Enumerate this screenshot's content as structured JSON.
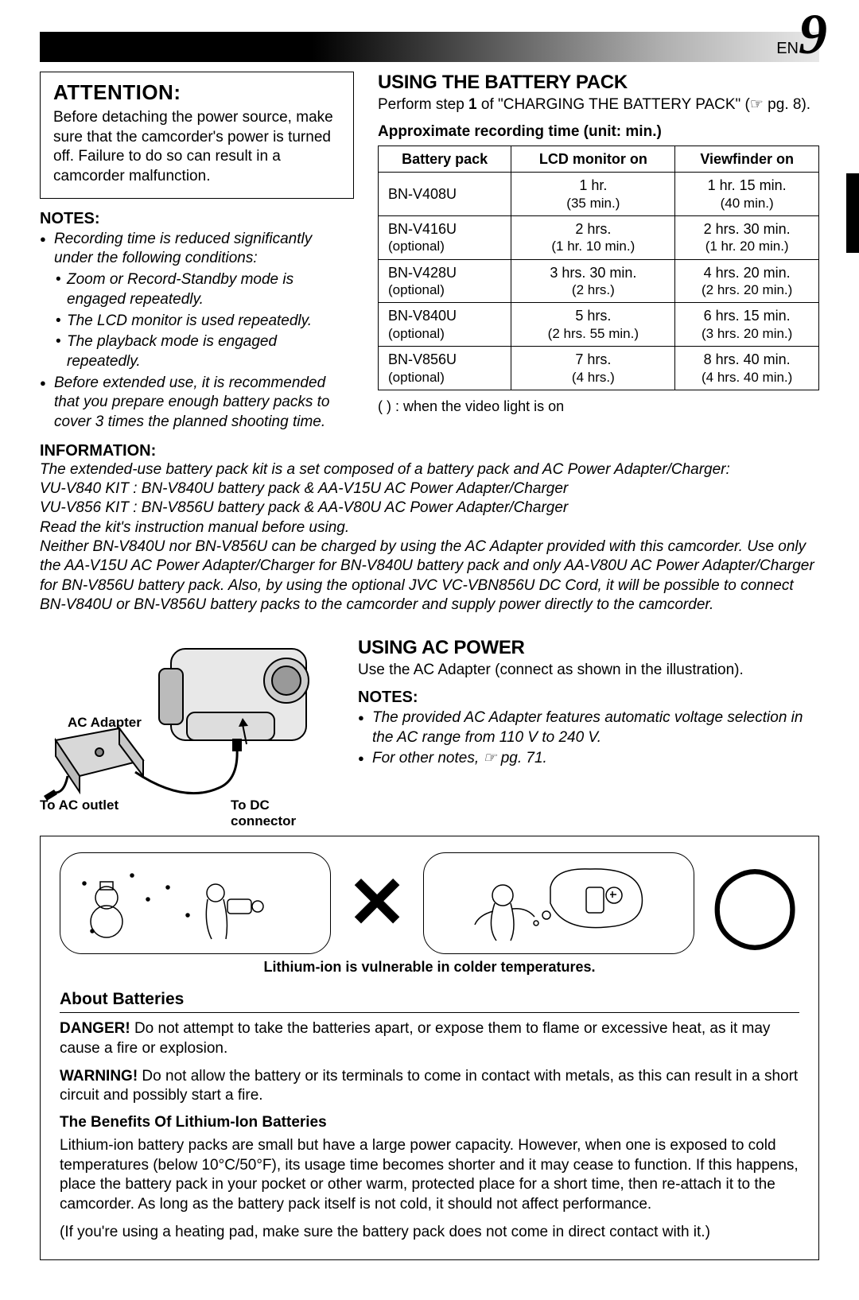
{
  "header": {
    "lang_prefix": "EN",
    "page_number": "9"
  },
  "attention": {
    "title": "ATTENTION:",
    "body": "Before detaching the power source, make sure that the camcorder's power is turned off. Failure to do so can result in a camcorder malfunction."
  },
  "notes_left": {
    "title": "NOTES:",
    "items": [
      "Recording time is reduced significantly under the following conditions:",
      "Before extended use, it is recommended that you prepare enough battery packs to cover 3 times the planned shooting time."
    ],
    "subitems": [
      "Zoom or Record-Standby mode is engaged repeatedly.",
      "The LCD monitor is used repeatedly.",
      "The playback mode is engaged repeatedly."
    ]
  },
  "battery_section": {
    "title": "USING THE BATTERY PACK",
    "subtitle_pre": "Perform step ",
    "subtitle_step": "1",
    "subtitle_post": " of \"CHARGING THE BATTERY PACK\" (☞ pg. 8).",
    "approx_title": "Approximate recording time (unit: min.)",
    "table": {
      "headers": [
        "Battery pack",
        "LCD monitor on",
        "Viewfinder on"
      ],
      "rows": [
        {
          "model": "BN-V408U",
          "opt": "",
          "lcd": "1 hr.",
          "lcd_sub": "(35 min.)",
          "vf": "1 hr. 15 min.",
          "vf_sub": "(40 min.)"
        },
        {
          "model": "BN-V416U",
          "opt": "(optional)",
          "lcd": "2 hrs.",
          "lcd_sub": "(1 hr. 10 min.)",
          "vf": "2 hrs. 30 min.",
          "vf_sub": "(1 hr. 20 min.)"
        },
        {
          "model": "BN-V428U",
          "opt": "(optional)",
          "lcd": "3 hrs. 30 min.",
          "lcd_sub": "(2 hrs.)",
          "vf": "4 hrs. 20 min.",
          "vf_sub": "(2 hrs. 20 min.)"
        },
        {
          "model": "BN-V840U",
          "opt": "(optional)",
          "lcd": "5 hrs.",
          "lcd_sub": "(2 hrs. 55 min.)",
          "vf": "6 hrs. 15 min.",
          "vf_sub": "(3 hrs. 20 min.)"
        },
        {
          "model": "BN-V856U",
          "opt": "(optional)",
          "lcd": "7 hrs.",
          "lcd_sub": "(4 hrs.)",
          "vf": "8 hrs. 40 min.",
          "vf_sub": "(4 hrs. 40 min.)"
        }
      ]
    },
    "caption": "(   ) : when the video light is on"
  },
  "information": {
    "title": "INFORMATION:",
    "body": "The extended-use battery pack kit is a set composed of a battery pack and AC Power Adapter/Charger:\nVU-V840 KIT : BN-V840U battery pack & AA-V15U AC Power Adapter/Charger\nVU-V856 KIT : BN-V856U battery pack & AA-V80U AC Power Adapter/Charger\nRead the kit's instruction manual before using.\nNeither BN-V840U nor BN-V856U can be charged by using the AC Adapter provided with this camcorder. Use only the AA-V15U AC Power Adapter/Charger for BN-V840U battery pack and only AA-V80U AC Power Adapter/Charger for BN-V856U battery pack. Also, by using the optional JVC VC-VBN856U DC Cord, it will be possible to connect BN-V840U or BN-V856U battery packs to the camcorder and supply power directly to the camcorder."
  },
  "ac_power": {
    "title": "USING AC POWER",
    "sub": "Use the AC Adapter (connect as shown in the illustration).",
    "notes_title": "NOTES:",
    "notes": [
      "The provided AC Adapter features automatic voltage selection in the AC range from 110 V to 240 V.",
      "For other notes, ☞ pg. 71."
    ],
    "labels": {
      "adapter": "AC Adapter",
      "outlet": "To AC outlet",
      "dc": "To DC connector"
    }
  },
  "battery_box": {
    "temp_caption": "Lithium-ion is vulnerable in colder temperatures.",
    "about_title": "About Batteries",
    "danger_label": "DANGER!",
    "danger_text": " Do not attempt to take the batteries apart, or expose them to flame or excessive heat, as it may cause a fire or explosion.",
    "warning_label": "WARNING!",
    "warning_text": " Do not allow the battery or its terminals to come in contact with metals, as this can result in a short circuit and possibly start a fire.",
    "benefits_title": "The Benefits Of Lithium-Ion Batteries",
    "benefits_body": "Lithium-ion battery packs are small but have a large power capacity. However, when one is exposed to cold temperatures (below 10°C/50°F), its usage time becomes shorter and it may cease to function. If this happens, place the battery pack in your pocket or other warm, protected place for a short time, then re-attach it to the camcorder. As long as the battery pack itself is not cold, it should not affect performance.",
    "benefits_note": "(If you're using a heating pad, make sure the battery pack does not come in direct contact with it.)"
  },
  "colors": {
    "text": "#000000",
    "bg": "#ffffff",
    "header_dark": "#000000",
    "header_light": "#e8e8e8"
  }
}
